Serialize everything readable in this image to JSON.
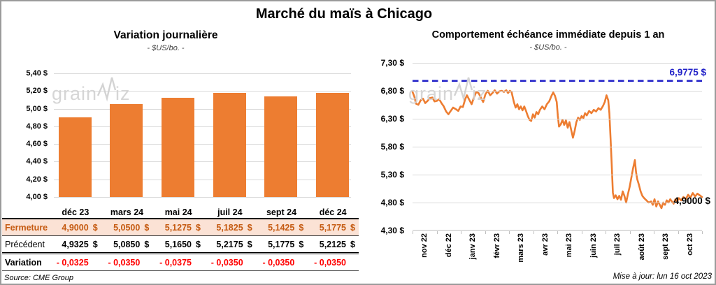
{
  "page": {
    "title": "Marché du maïs à Chicago",
    "source_note": "Source: CME Group",
    "updated_note": "Mise à jour: lun 16 oct 2023",
    "watermark": {
      "part1": "grain",
      "part2": "iz"
    }
  },
  "colors": {
    "series_orange": "#ED7D31",
    "reference_blue": "#2121C8",
    "negative_red": "#FF0000",
    "fermeture_bg": "#FBE2D5",
    "fermeture_text": "#C55A11",
    "gridline": "#D9D9D9",
    "axis": "#BFBFBF"
  },
  "chart_data": [
    {
      "type": "bar",
      "title": "Variation journalière",
      "subtitle": "- $US/bo. -",
      "categories": [
        "déc 23",
        "mars 24",
        "mai 24",
        "juil 24",
        "sept 24",
        "déc 24"
      ],
      "values": [
        4.9,
        5.05,
        5.1275,
        5.1825,
        5.1425,
        5.1775
      ],
      "ylabel": "$US/bo.",
      "ylim": [
        4.0,
        5.4
      ],
      "ytick_step": 0.2,
      "ytick_labels": [
        "5,40 $",
        "5,20 $",
        "5,00 $",
        "4,80 $",
        "4,60 $",
        "4,40 $",
        "4,20 $",
        "4,00 $"
      ],
      "grid": true,
      "bar_color": "#ED7D31"
    },
    {
      "type": "line",
      "title": "Comportement échéance immédiate depuis 1 an",
      "subtitle": "- $US/bo. -",
      "x_labels": [
        "nov 22",
        "déc 22",
        "janv 23",
        "févr 23",
        "mars 23",
        "avr 23",
        "mai 23",
        "juin 23",
        "juil 23",
        "août 23",
        "sept 23",
        "oct 23"
      ],
      "ylabel": "$US/bo.",
      "ylim": [
        4.3,
        7.3
      ],
      "ytick_step": 0.5,
      "ytick_labels": [
        "7,30 $",
        "6,80 $",
        "6,30 $",
        "5,80 $",
        "5,30 $",
        "4,80 $",
        "4,30 $"
      ],
      "grid": true,
      "line_color": "#ED7D31",
      "reference_line": {
        "value": 6.9775,
        "label": "6,9775 $",
        "color": "#2121C8",
        "style": "dashed"
      },
      "last_value": 4.9,
      "last_label": "4,9000 $",
      "points": [
        [
          0.0,
          6.78
        ],
        [
          0.006,
          6.7
        ],
        [
          0.012,
          6.57
        ],
        [
          0.02,
          6.55
        ],
        [
          0.028,
          6.63
        ],
        [
          0.036,
          6.66
        ],
        [
          0.044,
          6.58
        ],
        [
          0.052,
          6.62
        ],
        [
          0.06,
          6.67
        ],
        [
          0.068,
          6.68
        ],
        [
          0.076,
          6.61
        ],
        [
          0.084,
          6.62
        ],
        [
          0.092,
          6.65
        ],
        [
          0.1,
          6.58
        ],
        [
          0.108,
          6.52
        ],
        [
          0.116,
          6.43
        ],
        [
          0.124,
          6.38
        ],
        [
          0.132,
          6.44
        ],
        [
          0.14,
          6.5
        ],
        [
          0.15,
          6.47
        ],
        [
          0.158,
          6.44
        ],
        [
          0.166,
          6.52
        ],
        [
          0.174,
          6.51
        ],
        [
          0.182,
          6.65
        ],
        [
          0.188,
          6.72
        ],
        [
          0.196,
          6.64
        ],
        [
          0.204,
          6.56
        ],
        [
          0.212,
          6.68
        ],
        [
          0.22,
          6.78
        ],
        [
          0.228,
          6.76
        ],
        [
          0.236,
          6.68
        ],
        [
          0.244,
          6.6
        ],
        [
          0.252,
          6.74
        ],
        [
          0.26,
          6.8
        ],
        [
          0.268,
          6.72
        ],
        [
          0.276,
          6.76
        ],
        [
          0.284,
          6.81
        ],
        [
          0.292,
          6.75
        ],
        [
          0.3,
          6.79
        ],
        [
          0.308,
          6.8
        ],
        [
          0.316,
          6.78
        ],
        [
          0.324,
          6.81
        ],
        [
          0.33,
          6.76
        ],
        [
          0.336,
          6.8
        ],
        [
          0.342,
          6.78
        ],
        [
          0.35,
          6.6
        ],
        [
          0.356,
          6.5
        ],
        [
          0.362,
          6.56
        ],
        [
          0.368,
          6.47
        ],
        [
          0.374,
          6.52
        ],
        [
          0.38,
          6.45
        ],
        [
          0.386,
          6.52
        ],
        [
          0.392,
          6.44
        ],
        [
          0.398,
          6.35
        ],
        [
          0.404,
          6.28
        ],
        [
          0.41,
          6.26
        ],
        [
          0.416,
          6.38
        ],
        [
          0.422,
          6.32
        ],
        [
          0.428,
          6.42
        ],
        [
          0.434,
          6.38
        ],
        [
          0.44,
          6.46
        ],
        [
          0.448,
          6.52
        ],
        [
          0.456,
          6.47
        ],
        [
          0.464,
          6.56
        ],
        [
          0.472,
          6.61
        ],
        [
          0.48,
          6.71
        ],
        [
          0.486,
          6.77
        ],
        [
          0.492,
          6.71
        ],
        [
          0.498,
          6.6
        ],
        [
          0.502,
          6.35
        ],
        [
          0.506,
          6.16
        ],
        [
          0.512,
          6.2
        ],
        [
          0.518,
          6.28
        ],
        [
          0.524,
          6.19
        ],
        [
          0.53,
          6.27
        ],
        [
          0.536,
          6.14
        ],
        [
          0.542,
          6.24
        ],
        [
          0.548,
          6.1
        ],
        [
          0.554,
          5.96
        ],
        [
          0.56,
          6.08
        ],
        [
          0.566,
          6.24
        ],
        [
          0.572,
          6.32
        ],
        [
          0.578,
          6.28
        ],
        [
          0.584,
          6.35
        ],
        [
          0.59,
          6.31
        ],
        [
          0.596,
          6.4
        ],
        [
          0.602,
          6.36
        ],
        [
          0.61,
          6.44
        ],
        [
          0.618,
          6.4
        ],
        [
          0.626,
          6.46
        ],
        [
          0.634,
          6.43
        ],
        [
          0.642,
          6.49
        ],
        [
          0.65,
          6.46
        ],
        [
          0.658,
          6.53
        ],
        [
          0.664,
          6.6
        ],
        [
          0.67,
          6.72
        ],
        [
          0.676,
          6.63
        ],
        [
          0.68,
          6.4
        ],
        [
          0.684,
          5.95
        ],
        [
          0.688,
          5.5
        ],
        [
          0.692,
          4.98
        ],
        [
          0.696,
          4.88
        ],
        [
          0.702,
          4.93
        ],
        [
          0.708,
          4.86
        ],
        [
          0.714,
          4.92
        ],
        [
          0.72,
          4.85
        ],
        [
          0.726,
          5.0
        ],
        [
          0.732,
          4.92
        ],
        [
          0.738,
          4.8
        ],
        [
          0.744,
          4.95
        ],
        [
          0.75,
          5.08
        ],
        [
          0.756,
          5.25
        ],
        [
          0.762,
          5.42
        ],
        [
          0.768,
          5.56
        ],
        [
          0.772,
          5.35
        ],
        [
          0.776,
          5.22
        ],
        [
          0.782,
          5.12
        ],
        [
          0.788,
          5.0
        ],
        [
          0.794,
          4.92
        ],
        [
          0.8,
          4.88
        ],
        [
          0.808,
          4.84
        ],
        [
          0.816,
          4.8
        ],
        [
          0.824,
          4.82
        ],
        [
          0.83,
          4.76
        ],
        [
          0.836,
          4.86
        ],
        [
          0.842,
          4.73
        ],
        [
          0.848,
          4.82
        ],
        [
          0.854,
          4.76
        ],
        [
          0.86,
          4.7
        ],
        [
          0.866,
          4.8
        ],
        [
          0.872,
          4.76
        ],
        [
          0.878,
          4.84
        ],
        [
          0.884,
          4.8
        ],
        [
          0.89,
          4.86
        ],
        [
          0.896,
          4.82
        ],
        [
          0.902,
          4.78
        ],
        [
          0.908,
          4.86
        ],
        [
          0.914,
          4.82
        ],
        [
          0.92,
          4.88
        ],
        [
          0.928,
          4.84
        ],
        [
          0.936,
          4.9
        ],
        [
          0.944,
          4.86
        ],
        [
          0.952,
          4.94
        ],
        [
          0.96,
          4.89
        ],
        [
          0.968,
          4.97
        ],
        [
          0.976,
          4.91
        ],
        [
          0.984,
          4.96
        ],
        [
          0.992,
          4.93
        ],
        [
          1.0,
          4.9
        ]
      ]
    }
  ],
  "table": {
    "headers": [
      "déc 23",
      "mars 24",
      "mai 24",
      "juil 24",
      "sept 24",
      "déc 24"
    ],
    "rows": [
      {
        "label": "Fermeture",
        "style": "fermeture",
        "currency": "$",
        "values": [
          "4,9000",
          "5,0500",
          "5,1275",
          "5,1825",
          "5,1425",
          "5,1775"
        ]
      },
      {
        "label": "Précédent",
        "style": "precedent",
        "currency": "$",
        "values": [
          "4,9325",
          "5,0850",
          "5,1650",
          "5,2175",
          "5,1775",
          "5,2125"
        ]
      },
      {
        "label": "Variation",
        "style": "variation",
        "currency": "",
        "values": [
          "- 0,0325",
          "- 0,0350",
          "- 0,0375",
          "- 0,0350",
          "- 0,0350",
          "- 0,0350"
        ]
      }
    ]
  }
}
